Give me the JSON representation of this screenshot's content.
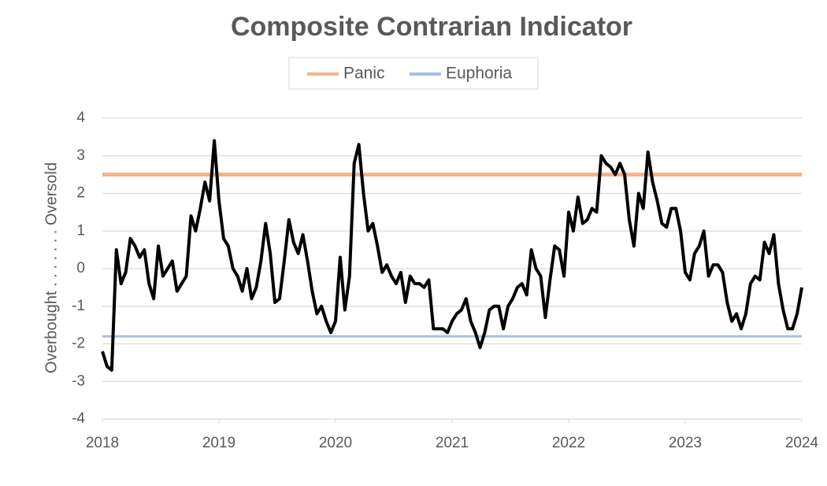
{
  "chart_data": {
    "type": "line",
    "title": "Composite Contrarian Indicator",
    "y_label": "Overbought . . . . . . . Oversold",
    "color": "#000000",
    "x": [
      2018,
      2018.04,
      2018.08,
      2018.12,
      2018.16,
      2018.2,
      2018.24,
      2018.28,
      2018.32,
      2018.36,
      2018.4,
      2018.44,
      2018.48,
      2018.52,
      2018.56,
      2018.6,
      2018.64,
      2018.68,
      2018.72,
      2018.76,
      2018.8,
      2018.84,
      2018.88,
      2018.92,
      2018.96,
      2019,
      2019.04,
      2019.08,
      2019.12,
      2019.16,
      2019.2,
      2019.24,
      2019.28,
      2019.32,
      2019.36,
      2019.4,
      2019.44,
      2019.48,
      2019.52,
      2019.56,
      2019.6,
      2019.64,
      2019.68,
      2019.72,
      2019.76,
      2019.8,
      2019.84,
      2019.88,
      2019.92,
      2019.96,
      2020,
      2020.04,
      2020.08,
      2020.12,
      2020.16,
      2020.2,
      2020.24,
      2020.28,
      2020.32,
      2020.36,
      2020.4,
      2020.44,
      2020.48,
      2020.52,
      2020.56,
      2020.6,
      2020.64,
      2020.68,
      2020.72,
      2020.76,
      2020.8,
      2020.84,
      2020.88,
      2020.92,
      2020.96,
      2021,
      2021.04,
      2021.08,
      2021.12,
      2021.16,
      2021.2,
      2021.24,
      2021.28,
      2021.32,
      2021.36,
      2021.4,
      2021.44,
      2021.48,
      2021.52,
      2021.56,
      2021.6,
      2021.64,
      2021.68,
      2021.72,
      2021.76,
      2021.8,
      2021.84,
      2021.88,
      2021.92,
      2021.96,
      2022,
      2022.04,
      2022.08,
      2022.12,
      2022.16,
      2022.2,
      2022.24,
      2022.28,
      2022.32,
      2022.36,
      2022.4,
      2022.44,
      2022.48,
      2022.52,
      2022.56,
      2022.6,
      2022.64,
      2022.68,
      2022.72,
      2022.76,
      2022.8,
      2022.84,
      2022.88,
      2022.92,
      2022.96,
      2023,
      2023.04,
      2023.08,
      2023.12,
      2023.16,
      2023.2,
      2023.24,
      2023.28,
      2023.32,
      2023.36,
      2023.4,
      2023.44,
      2023.48,
      2023.52,
      2023.56,
      2023.6,
      2023.64,
      2023.68,
      2023.72,
      2023.76,
      2023.8,
      2023.84,
      2023.88,
      2023.92,
      2023.96,
      2024
    ],
    "values": [
      -2.2,
      -2.6,
      -2.7,
      0.5,
      -0.4,
      -0.1,
      0.8,
      0.6,
      0.3,
      0.5,
      -0.4,
      -0.8,
      0.6,
      -0.2,
      0.0,
      0.2,
      -0.6,
      -0.4,
      -0.2,
      1.4,
      1.0,
      1.6,
      2.3,
      1.8,
      3.4,
      1.8,
      0.8,
      0.6,
      0.0,
      -0.2,
      -0.6,
      0.0,
      -0.8,
      -0.5,
      0.2,
      1.2,
      0.4,
      -0.9,
      -0.8,
      0.2,
      1.3,
      0.7,
      0.4,
      0.9,
      0.2,
      -0.6,
      -1.2,
      -1.0,
      -1.4,
      -1.7,
      -1.4,
      0.3,
      -1.1,
      -0.2,
      2.8,
      3.3,
      2.0,
      1.0,
      1.2,
      0.6,
      -0.1,
      0.1,
      -0.2,
      -0.4,
      -0.1,
      -0.9,
      -0.2,
      -0.4,
      -0.4,
      -0.5,
      -0.3,
      -1.6,
      -1.6,
      -1.6,
      -1.7,
      -1.4,
      -1.2,
      -1.1,
      -0.8,
      -1.4,
      -1.7,
      -2.1,
      -1.7,
      -1.1,
      -1.0,
      -1.0,
      -1.6,
      -1.0,
      -0.8,
      -0.5,
      -0.4,
      -0.7,
      0.5,
      0.0,
      -0.2,
      -1.3,
      -0.3,
      0.6,
      0.5,
      -0.2,
      1.5,
      1.0,
      1.9,
      1.2,
      1.3,
      1.6,
      1.5,
      3.0,
      2.8,
      2.7,
      2.5,
      2.8,
      2.5,
      1.3,
      0.6,
      2.0,
      1.6,
      3.1,
      2.3,
      1.8,
      1.2,
      1.1,
      1.6,
      1.6,
      1.0,
      -0.1,
      -0.3,
      0.4,
      0.6,
      1.0,
      -0.2,
      0.1,
      0.1,
      -0.1,
      -0.9,
      -1.4,
      -1.2,
      -1.6,
      -1.2,
      -0.4,
      -0.2,
      -0.3,
      0.7,
      0.4,
      0.9,
      -0.4,
      -1.1,
      -1.6,
      -1.6,
      -1.2,
      -0.5
    ],
    "reference_lines": [
      {
        "name": "Panic",
        "value": 2.5,
        "color": "#f0b48c"
      },
      {
        "name": "Euphoria",
        "value": -1.8,
        "color": "#a9bde3"
      }
    ],
    "xlim": [
      2018,
      2024
    ],
    "xticks": [
      2018,
      2019,
      2020,
      2021,
      2022,
      2023,
      2024
    ],
    "ylim": [
      -4,
      4
    ],
    "yticks": [
      -4,
      -3,
      -2,
      -1,
      0,
      1,
      2,
      3,
      4
    ],
    "grid": true
  }
}
